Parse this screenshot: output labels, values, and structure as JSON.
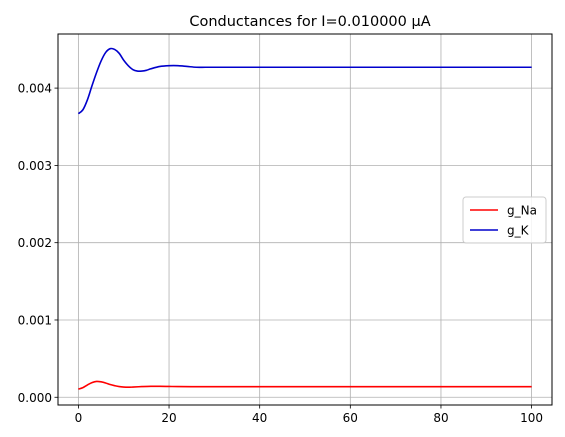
{
  "chart_data": {
    "type": "line",
    "title": "Conductances for I=0.010000 μA",
    "xlabel": "",
    "ylabel": "",
    "xlim": [
      -4.5,
      104.5
    ],
    "ylim": [
      -0.0001,
      0.0047
    ],
    "xticks": [
      0,
      20,
      40,
      60,
      80,
      100
    ],
    "xtick_labels": [
      "0",
      "20",
      "40",
      "60",
      "80",
      "100"
    ],
    "yticks": [
      0.0,
      0.001,
      0.002,
      0.003,
      0.004
    ],
    "ytick_labels": [
      "0.000",
      "0.001",
      "0.002",
      "0.003",
      "0.004"
    ],
    "grid": true,
    "legend_position": "center-right",
    "series": [
      {
        "name": "g_Na",
        "color": "#ff0000",
        "x": [
          0,
          1,
          2,
          3,
          4,
          5,
          6,
          7,
          8,
          9,
          10,
          11,
          12,
          14,
          16,
          18,
          20,
          22,
          25,
          30,
          40,
          50,
          60,
          70,
          80,
          90,
          100
        ],
        "y": [
          0.000105,
          0.000125,
          0.00016,
          0.00019,
          0.000205,
          0.0002,
          0.000185,
          0.000165,
          0.00015,
          0.000138,
          0.000132,
          0.00013,
          0.000132,
          0.000138,
          0.000142,
          0.000142,
          0.00014,
          0.000138,
          0.000137,
          0.000137,
          0.000137,
          0.000137,
          0.000137,
          0.000137,
          0.000137,
          0.000137,
          0.000137
        ]
      },
      {
        "name": "g_K",
        "color": "#0000cc",
        "x": [
          0,
          1,
          2,
          3,
          4,
          5,
          6,
          7,
          8,
          9,
          10,
          11,
          12,
          13,
          14,
          15,
          16,
          18,
          20,
          22,
          24,
          26,
          28,
          30,
          35,
          40,
          50,
          60,
          70,
          80,
          90,
          100
        ],
        "y": [
          0.00367,
          0.00372,
          0.00385,
          0.00403,
          0.0042,
          0.00435,
          0.00446,
          0.00451,
          0.0045,
          0.00445,
          0.00436,
          0.00429,
          0.00424,
          0.00422,
          0.00422,
          0.00423,
          0.00425,
          0.00428,
          0.00429,
          0.00429,
          0.00428,
          0.00427,
          0.00427,
          0.00427,
          0.00427,
          0.00427,
          0.00427,
          0.00427,
          0.00427,
          0.00427,
          0.00427,
          0.00427
        ]
      }
    ]
  }
}
